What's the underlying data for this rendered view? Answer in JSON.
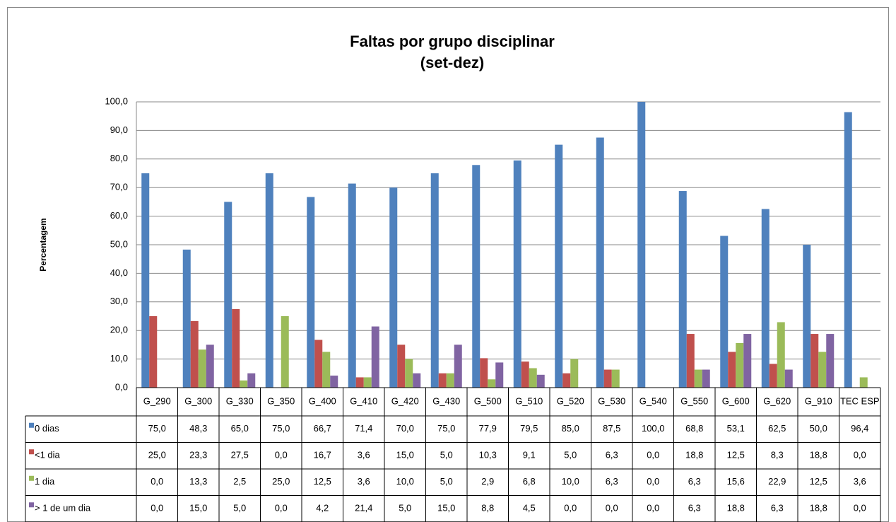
{
  "chart_data": {
    "type": "bar",
    "title": "Faltas por grupo disciplinar",
    "subtitle": "(set-dez)",
    "y_label": "Percentagem",
    "categories": [
      "G_290",
      "G_300",
      "G_330",
      "G_350",
      "G_400",
      "G_410",
      "G_420",
      "G_430",
      "G_500",
      "G_510",
      "G_520",
      "G_530",
      "G_540",
      "G_550",
      "G_600",
      "G_620",
      "G_910",
      "TEC ESP"
    ],
    "series": [
      {
        "name": "0 dias",
        "color": "#4f81bd",
        "values": [
          75.0,
          48.3,
          65.0,
          75.0,
          66.7,
          71.4,
          70.0,
          75.0,
          77.9,
          79.5,
          85.0,
          87.5,
          100.0,
          68.8,
          53.1,
          62.5,
          50.0,
          96.4
        ],
        "value_labels": [
          "75,0",
          "48,3",
          "65,0",
          "75,0",
          "66,7",
          "71,4",
          "70,0",
          "75,0",
          "77,9",
          "79,5",
          "85,0",
          "87,5",
          "100,0",
          "68,8",
          "53,1",
          "62,5",
          "50,0",
          "96,4"
        ]
      },
      {
        "name": "<1 dia",
        "color": "#c0504d",
        "values": [
          25.0,
          23.3,
          27.5,
          0.0,
          16.7,
          3.6,
          15.0,
          5.0,
          10.3,
          9.1,
          5.0,
          6.3,
          0.0,
          18.8,
          12.5,
          8.3,
          18.8,
          0.0
        ],
        "value_labels": [
          "25,0",
          "23,3",
          "27,5",
          "0,0",
          "16,7",
          "3,6",
          "15,0",
          "5,0",
          "10,3",
          "9,1",
          "5,0",
          "6,3",
          "0,0",
          "18,8",
          "12,5",
          "8,3",
          "18,8",
          "0,0"
        ]
      },
      {
        "name": "1 dia",
        "color": "#9bbb59",
        "values": [
          0.0,
          13.3,
          2.5,
          25.0,
          12.5,
          3.6,
          10.0,
          5.0,
          2.9,
          6.8,
          10.0,
          6.3,
          0.0,
          6.3,
          15.6,
          22.9,
          12.5,
          3.6
        ],
        "value_labels": [
          "0,0",
          "13,3",
          "2,5",
          "25,0",
          "12,5",
          "3,6",
          "10,0",
          "5,0",
          "2,9",
          "6,8",
          "10,0",
          "6,3",
          "0,0",
          "6,3",
          "15,6",
          "22,9",
          "12,5",
          "3,6"
        ]
      },
      {
        "name": "> 1 de um dia",
        "color": "#8064a2",
        "values": [
          0.0,
          15.0,
          5.0,
          0.0,
          4.2,
          21.4,
          5.0,
          15.0,
          8.8,
          4.5,
          0.0,
          0.0,
          0.0,
          6.3,
          18.8,
          6.3,
          18.8,
          0.0
        ],
        "value_labels": [
          "0,0",
          "15,0",
          "5,0",
          "0,0",
          "4,2",
          "21,4",
          "5,0",
          "15,0",
          "8,8",
          "4,5",
          "0,0",
          "0,0",
          "0,0",
          "6,3",
          "18,8",
          "6,3",
          "18,8",
          "0,0"
        ]
      }
    ],
    "ylim": [
      0,
      100
    ],
    "yticks": [
      {
        "value": 0,
        "label": "0,0"
      },
      {
        "value": 10,
        "label": "10,0"
      },
      {
        "value": 20,
        "label": "20,0"
      },
      {
        "value": 30,
        "label": "30,0"
      },
      {
        "value": 40,
        "label": "40,0"
      },
      {
        "value": 50,
        "label": "50,0"
      },
      {
        "value": 60,
        "label": "60,0"
      },
      {
        "value": 70,
        "label": "70,0"
      },
      {
        "value": 80,
        "label": "80,0"
      },
      {
        "value": 90,
        "label": "90,0"
      },
      {
        "value": 100,
        "label": "100,0"
      }
    ],
    "grid": true
  }
}
